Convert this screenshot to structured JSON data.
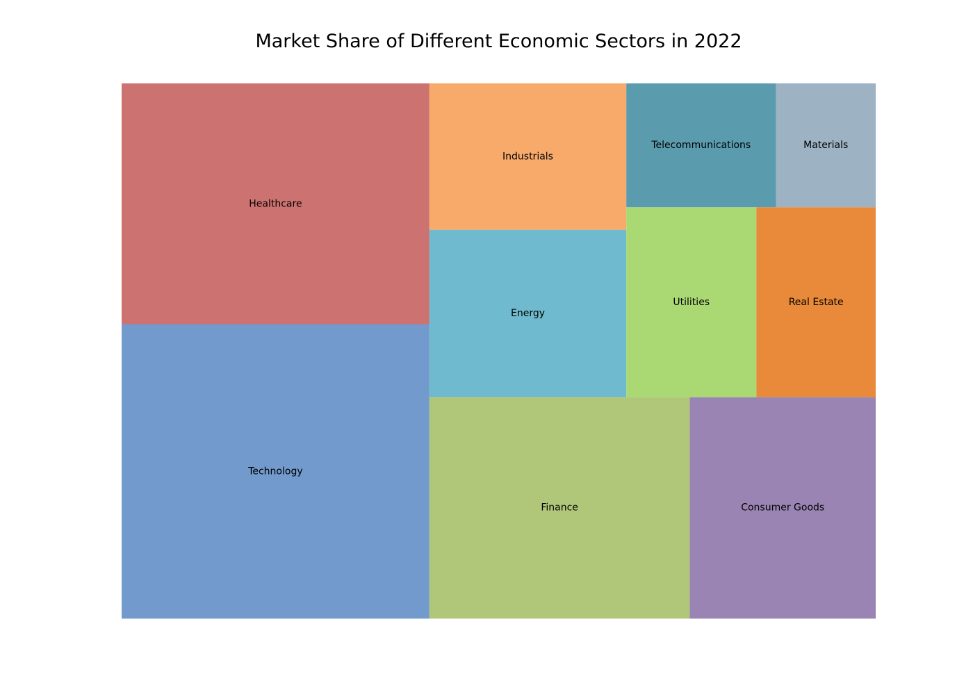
{
  "chart_data": {
    "type": "treemap",
    "title": "Market Share of Different Economic Sectors in 2022",
    "sectors": [
      {
        "name": "Technology",
        "value": 22,
        "color": "#729ACC"
      },
      {
        "name": "Healthcare",
        "value": 18,
        "color": "#CC7271"
      },
      {
        "name": "Finance",
        "value": 14,
        "color": "#B0C77A"
      },
      {
        "name": "Consumer Goods",
        "value": 10,
        "color": "#9A84B3"
      },
      {
        "name": "Energy",
        "value": 8,
        "color": "#6FBACE"
      },
      {
        "name": "Industrials",
        "value": 7,
        "color": "#F8AA6B"
      },
      {
        "name": "Utilities",
        "value": 6,
        "color": "#AAD974"
      },
      {
        "name": "Real Estate",
        "value": 5.5,
        "color": "#E88A3A"
      },
      {
        "name": "Telecommunications",
        "value": 4.5,
        "color": "#5A9CAE"
      },
      {
        "name": "Materials",
        "value": 3,
        "color": "#9DB3C3"
      }
    ]
  }
}
